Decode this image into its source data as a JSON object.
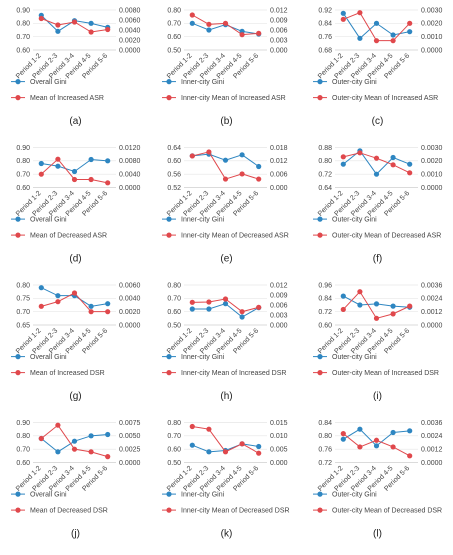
{
  "figure": {
    "categories": [
      "Period 1-2",
      "Period 2-3",
      "Period 3-4",
      "Period 4-5",
      "Period 5-6"
    ],
    "colors": {
      "gini": "#2E86C1",
      "mean": "#E0484C",
      "axis": "#cfcfcf",
      "grid": "#e6e6e6",
      "text": "#444444"
    }
  },
  "chart_data": [
    {
      "type": "line",
      "panel_label": "(a)",
      "left_ylim": [
        0.6,
        0.9
      ],
      "left_ticks": [
        "0.90",
        "0.80",
        "0.70",
        "0.60"
      ],
      "right_ylim": [
        0,
        0.008
      ],
      "right_ticks": [
        "0.0080",
        "0.0060",
        "0.0040",
        "0.0020",
        "0.0000"
      ],
      "series": [
        {
          "name": "Overall Gini",
          "axis": "left",
          "values": [
            0.86,
            0.74,
            0.82,
            0.8,
            0.77
          ]
        },
        {
          "name": "Mean of Increased ASR",
          "axis": "right",
          "values": [
            0.0063,
            0.005,
            0.0056,
            0.0036,
            0.0041
          ]
        }
      ],
      "grid": true,
      "legend": "bottom"
    },
    {
      "type": "line",
      "panel_label": "(b)",
      "left_ylim": [
        0.5,
        0.8
      ],
      "left_ticks": [
        "0.80",
        "0.70",
        "0.60",
        "0.50"
      ],
      "right_ylim": [
        0,
        0.012
      ],
      "right_ticks": [
        "0.012",
        "0.009",
        "0.006",
        "0.003",
        "0.000"
      ],
      "series": [
        {
          "name": "Inner-city Gini",
          "axis": "left",
          "values": [
            0.7,
            0.65,
            0.69,
            0.64,
            0.62
          ]
        },
        {
          "name": "Inner-city Mean of Increased ASR",
          "axis": "right",
          "values": [
            0.0105,
            0.0077,
            0.008,
            0.0046,
            0.005
          ]
        }
      ],
      "grid": true,
      "legend": "bottom"
    },
    {
      "type": "line",
      "panel_label": "(c)",
      "left_ylim": [
        0.68,
        0.92
      ],
      "left_ticks": [
        "0.92",
        "0.84",
        "0.76",
        "0.68"
      ],
      "right_ylim": [
        0,
        0.003
      ],
      "right_ticks": [
        "0.0030",
        "0.0020",
        "0.0010",
        "0.0000"
      ],
      "series": [
        {
          "name": "Outer-city Gini",
          "axis": "left",
          "values": [
            0.9,
            0.75,
            0.84,
            0.77,
            0.79
          ]
        },
        {
          "name": "Outer-city Mean of Increased ASR",
          "axis": "right",
          "values": [
            0.0023,
            0.0028,
            0.0007,
            0.0007,
            0.002
          ]
        }
      ],
      "grid": true,
      "legend": "bottom"
    },
    {
      "type": "line",
      "panel_label": "(d)",
      "left_ylim": [
        0.6,
        0.9
      ],
      "left_ticks": [
        "0.90",
        "0.80",
        "0.70",
        "0.60"
      ],
      "right_ylim": [
        0,
        0.012
      ],
      "right_ticks": [
        "0.0120",
        "0.0080",
        "0.0040",
        "0.0000"
      ],
      "series": [
        {
          "name": "Overall Gini",
          "axis": "left",
          "values": [
            0.78,
            0.76,
            0.72,
            0.81,
            0.8
          ]
        },
        {
          "name": "Mean of Decreased ASR",
          "axis": "right",
          "values": [
            0.004,
            0.0085,
            0.0024,
            0.0024,
            0.0014
          ]
        }
      ],
      "grid": true,
      "legend": "bottom"
    },
    {
      "type": "line",
      "panel_label": "(e)",
      "left_ylim": [
        0.52,
        0.64
      ],
      "left_ticks": [
        "0.64",
        "0.60",
        "0.56",
        "0.52"
      ],
      "right_ylim": [
        0,
        0.018
      ],
      "right_ticks": [
        "0.018",
        "0.012",
        "0.006",
        "0.000"
      ],
      "series": [
        {
          "name": "Inner-city Gini",
          "axis": "left",
          "values": [
            0.615,
            0.62,
            0.602,
            0.618,
            0.583
          ]
        },
        {
          "name": "Inner-city Mean of Decreased ASR",
          "axis": "right",
          "values": [
            0.0142,
            0.016,
            0.0038,
            0.0061,
            0.0038
          ]
        }
      ],
      "grid": true,
      "legend": "bottom"
    },
    {
      "type": "line",
      "panel_label": "(f)",
      "left_ylim": [
        0.64,
        0.88
      ],
      "left_ticks": [
        "0.88",
        "0.80",
        "0.72",
        "0.64"
      ],
      "right_ylim": [
        0,
        0.003
      ],
      "right_ticks": [
        "0.0030",
        "0.0020",
        "0.0010",
        "0.0000"
      ],
      "series": [
        {
          "name": "Outer-city Gini",
          "axis": "left",
          "values": [
            0.78,
            0.86,
            0.72,
            0.82,
            0.78
          ]
        },
        {
          "name": "Outer-city Mean of Decreased ASR",
          "axis": "right",
          "values": [
            0.0023,
            0.0026,
            0.0022,
            0.0017,
            0.0011
          ]
        }
      ],
      "grid": true,
      "legend": "bottom"
    },
    {
      "type": "line",
      "panel_label": "(g)",
      "left_ylim": [
        0.65,
        0.8
      ],
      "left_ticks": [
        "0.80",
        "0.75",
        "0.70",
        "0.65"
      ],
      "right_ylim": [
        0,
        0.006
      ],
      "right_ticks": [
        "0.0060",
        "0.0040",
        "0.0020",
        "0.0000"
      ],
      "series": [
        {
          "name": "Overall Gini",
          "axis": "left",
          "values": [
            0.79,
            0.76,
            0.76,
            0.72,
            0.73
          ]
        },
        {
          "name": "Mean of Increased DSR",
          "axis": "right",
          "values": [
            0.0028,
            0.0035,
            0.0048,
            0.002,
            0.002
          ]
        }
      ],
      "grid": true,
      "legend": "bottom"
    },
    {
      "type": "line",
      "panel_label": "(h)",
      "left_ylim": [
        0.5,
        0.8
      ],
      "left_ticks": [
        "0.80",
        "0.70",
        "0.60",
        "0.50"
      ],
      "right_ylim": [
        0,
        0.012
      ],
      "right_ticks": [
        "0.012",
        "0.009",
        "0.006",
        "0.003",
        "0.000"
      ],
      "series": [
        {
          "name": "Inner-city Gini",
          "axis": "left",
          "values": [
            0.62,
            0.62,
            0.66,
            0.56,
            0.63
          ]
        },
        {
          "name": "Inner-city Mean of Increased DSR",
          "axis": "right",
          "values": [
            0.0068,
            0.0069,
            0.0078,
            0.004,
            0.0053
          ]
        }
      ],
      "grid": true,
      "legend": "bottom"
    },
    {
      "type": "line",
      "panel_label": "(i)",
      "left_ylim": [
        0.6,
        0.96
      ],
      "left_ticks": [
        "0.96",
        "0.84",
        "0.72",
        "0.60"
      ],
      "right_ylim": [
        0,
        0.0036
      ],
      "right_ticks": [
        "0.0036",
        "0.0024",
        "0.0012",
        "0.0000"
      ],
      "series": [
        {
          "name": "Outer-city Gini",
          "axis": "left",
          "values": [
            0.86,
            0.78,
            0.79,
            0.77,
            0.76
          ]
        },
        {
          "name": "Outer-city Mean of Increased DSR",
          "axis": "right",
          "values": [
            0.0014,
            0.003,
            0.0006,
            0.001,
            0.0017
          ]
        }
      ],
      "grid": true,
      "legend": "bottom"
    },
    {
      "type": "line",
      "panel_label": "(j)",
      "left_ylim": [
        0.6,
        0.9
      ],
      "left_ticks": [
        "0.90",
        "0.80",
        "0.70",
        "0.60"
      ],
      "right_ylim": [
        0,
        0.0075
      ],
      "right_ticks": [
        "0.0075",
        "0.0050",
        "0.0025",
        "0.0000"
      ],
      "series": [
        {
          "name": "Overall Gini",
          "axis": "left",
          "values": [
            0.78,
            0.68,
            0.76,
            0.8,
            0.81
          ]
        },
        {
          "name": "Mean of Decreased DSR",
          "axis": "right",
          "values": [
            0.0045,
            0.007,
            0.0025,
            0.002,
            0.0011
          ]
        }
      ],
      "grid": true,
      "legend": "bottom"
    },
    {
      "type": "line",
      "panel_label": "(k)",
      "left_ylim": [
        0.5,
        0.8
      ],
      "left_ticks": [
        "0.80",
        "0.70",
        "0.60",
        "0.50"
      ],
      "right_ylim": [
        0,
        0.015
      ],
      "right_ticks": [
        "0.015",
        "0.010",
        "0.005",
        "0.000"
      ],
      "series": [
        {
          "name": "Inner-city Gini",
          "axis": "left",
          "values": [
            0.63,
            0.58,
            0.59,
            0.64,
            0.62
          ]
        },
        {
          "name": "Inner-city Mean of Decreased DSR",
          "axis": "right",
          "values": [
            0.0135,
            0.0125,
            0.004,
            0.007,
            0.0035
          ]
        }
      ],
      "grid": true,
      "legend": "bottom"
    },
    {
      "type": "line",
      "panel_label": "(l)",
      "left_ylim": [
        0.72,
        0.84
      ],
      "left_ticks": [
        "0.84",
        "0.80",
        "0.76",
        "0.72"
      ],
      "right_ylim": [
        0,
        0.0036
      ],
      "right_ticks": [
        "0.0036",
        "0.0024",
        "0.0012",
        "0.0000"
      ],
      "series": [
        {
          "name": "Outer-city Gini",
          "axis": "left",
          "values": [
            0.79,
            0.82,
            0.77,
            0.81,
            0.815
          ]
        },
        {
          "name": "Outer-city Mean of Decreased DSR",
          "axis": "right",
          "values": [
            0.0026,
            0.0014,
            0.002,
            0.0014,
            0.0006
          ]
        }
      ],
      "grid": true,
      "legend": "bottom"
    }
  ]
}
